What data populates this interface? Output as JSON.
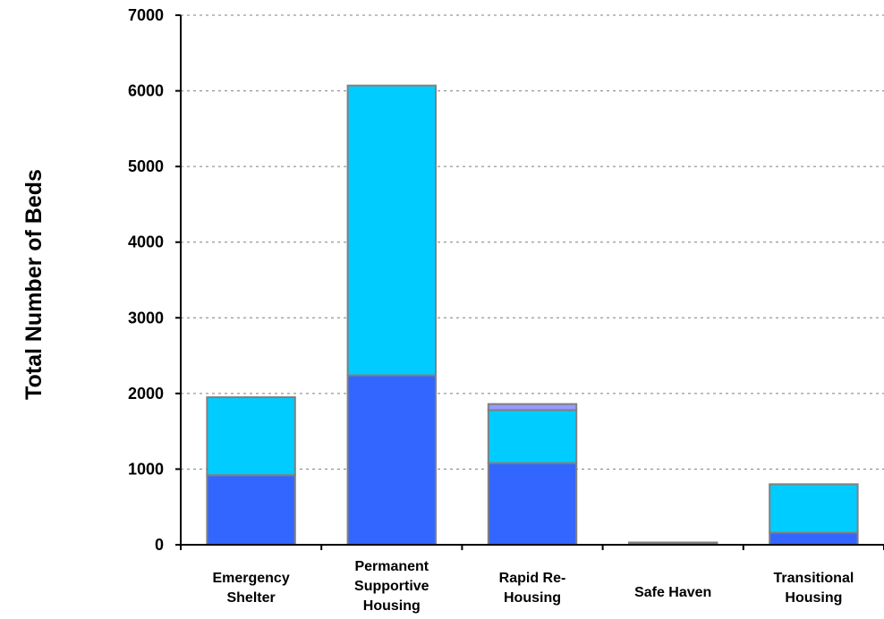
{
  "chart_data": {
    "type": "bar",
    "stacked": true,
    "categories": [
      [
        "Emergency",
        "Shelter"
      ],
      [
        "Permanent",
        "Supportive",
        "Housing"
      ],
      [
        "Rapid Re-",
        "Housing"
      ],
      [
        "Safe Haven"
      ],
      [
        "Transitional",
        "Housing"
      ]
    ],
    "series": [
      {
        "color": "#3366ff",
        "values": [
          920,
          2240,
          1080,
          10,
          160
        ]
      },
      {
        "color": "#00ccff",
        "values": [
          1030,
          3830,
          700,
          20,
          640
        ]
      },
      {
        "color": "#9999ff",
        "values": [
          0,
          0,
          80,
          0,
          0
        ]
      }
    ],
    "title": "",
    "xlabel": "",
    "ylabel": "Total Number of Beds",
    "ylim": [
      0,
      7000
    ],
    "yticks": [
      0,
      1000,
      2000,
      3000,
      4000,
      5000,
      6000,
      7000
    ],
    "grid": true
  }
}
